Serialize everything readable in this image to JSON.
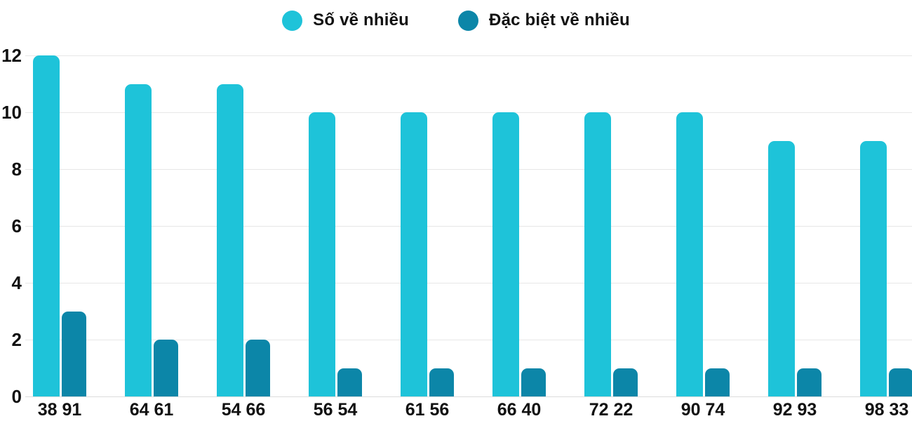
{
  "legend": {
    "items": [
      {
        "label": "Số về nhiều",
        "color": "#1EC3D9"
      },
      {
        "label": "Đặc biệt về nhiều",
        "color": "#0C86A8"
      }
    ]
  },
  "chart_data": {
    "type": "bar",
    "categories": [
      "38 91",
      "64 61",
      "54 66",
      "56 54",
      "61 56",
      "66 40",
      "72 22",
      "90 74",
      "92 93",
      "98 33"
    ],
    "series": [
      {
        "name": "Số về nhiều",
        "color": "#1EC3D9",
        "values": [
          12,
          11,
          11,
          10,
          10,
          10,
          10,
          10,
          9,
          9
        ]
      },
      {
        "name": "Đặc biệt về nhiều",
        "color": "#0C86A8",
        "values": [
          3,
          2,
          2,
          1,
          1,
          1,
          1,
          1,
          1,
          1
        ]
      }
    ],
    "title": "",
    "xlabel": "",
    "ylabel": "",
    "ylim": [
      0,
      12
    ],
    "yticks": [
      0,
      2,
      4,
      6,
      8,
      10,
      12
    ],
    "grid": true,
    "legend_position": "top-center",
    "gridline_color": "#e7e7e7",
    "baseline_color": "#dcdcdc",
    "axis_text_color": "#111111"
  }
}
